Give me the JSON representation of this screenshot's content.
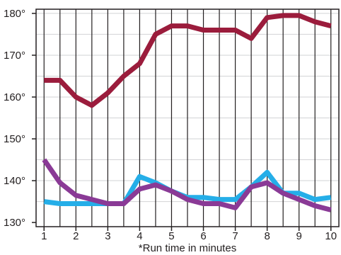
{
  "chart_data": {
    "type": "line",
    "xlabel": "*Run time in minutes",
    "ylabel": "",
    "xlim": [
      0.75,
      10.25
    ],
    "ylim": [
      129,
      181
    ],
    "x_ticks": [
      1,
      2,
      3,
      4,
      5,
      6,
      7,
      8,
      9,
      10
    ],
    "x_tick_labels": [
      "1",
      "2",
      "3",
      "4",
      "5",
      "6",
      "7",
      "8",
      "9",
      "10"
    ],
    "y_ticks": [
      130,
      140,
      150,
      160,
      170,
      180
    ],
    "y_tick_labels": [
      "130°",
      "140°",
      "150°",
      "160°",
      "170°",
      "180°"
    ],
    "grid": "vertical lines every half minute, horizontal lines every 5 degrees",
    "x": [
      1,
      1.5,
      2,
      2.5,
      3,
      3.5,
      4,
      4.5,
      5,
      5.5,
      6,
      6.5,
      7,
      7.5,
      8,
      8.5,
      9,
      9.5,
      10
    ],
    "series": [
      {
        "color": "#9b1c3c",
        "values": [
          164,
          164,
          160,
          158,
          161,
          165,
          168,
          175,
          177,
          177,
          176,
          176,
          176,
          174,
          179,
          179.5,
          179.5,
          178,
          177
        ]
      },
      {
        "color": "#25aee8",
        "values": [
          135,
          134.5,
          134.5,
          134.5,
          134.5,
          134.5,
          141,
          139.5,
          137.5,
          136,
          136,
          135.5,
          135.5,
          138.5,
          142,
          137,
          137,
          135.5,
          136
        ]
      },
      {
        "color": "#8a3a96",
        "values": [
          145,
          139.5,
          136.5,
          135.5,
          134.5,
          134.5,
          138,
          139,
          137.5,
          135.5,
          134.5,
          134.5,
          133.5,
          138.5,
          139.5,
          137,
          135.5,
          134,
          133
        ]
      }
    ]
  }
}
